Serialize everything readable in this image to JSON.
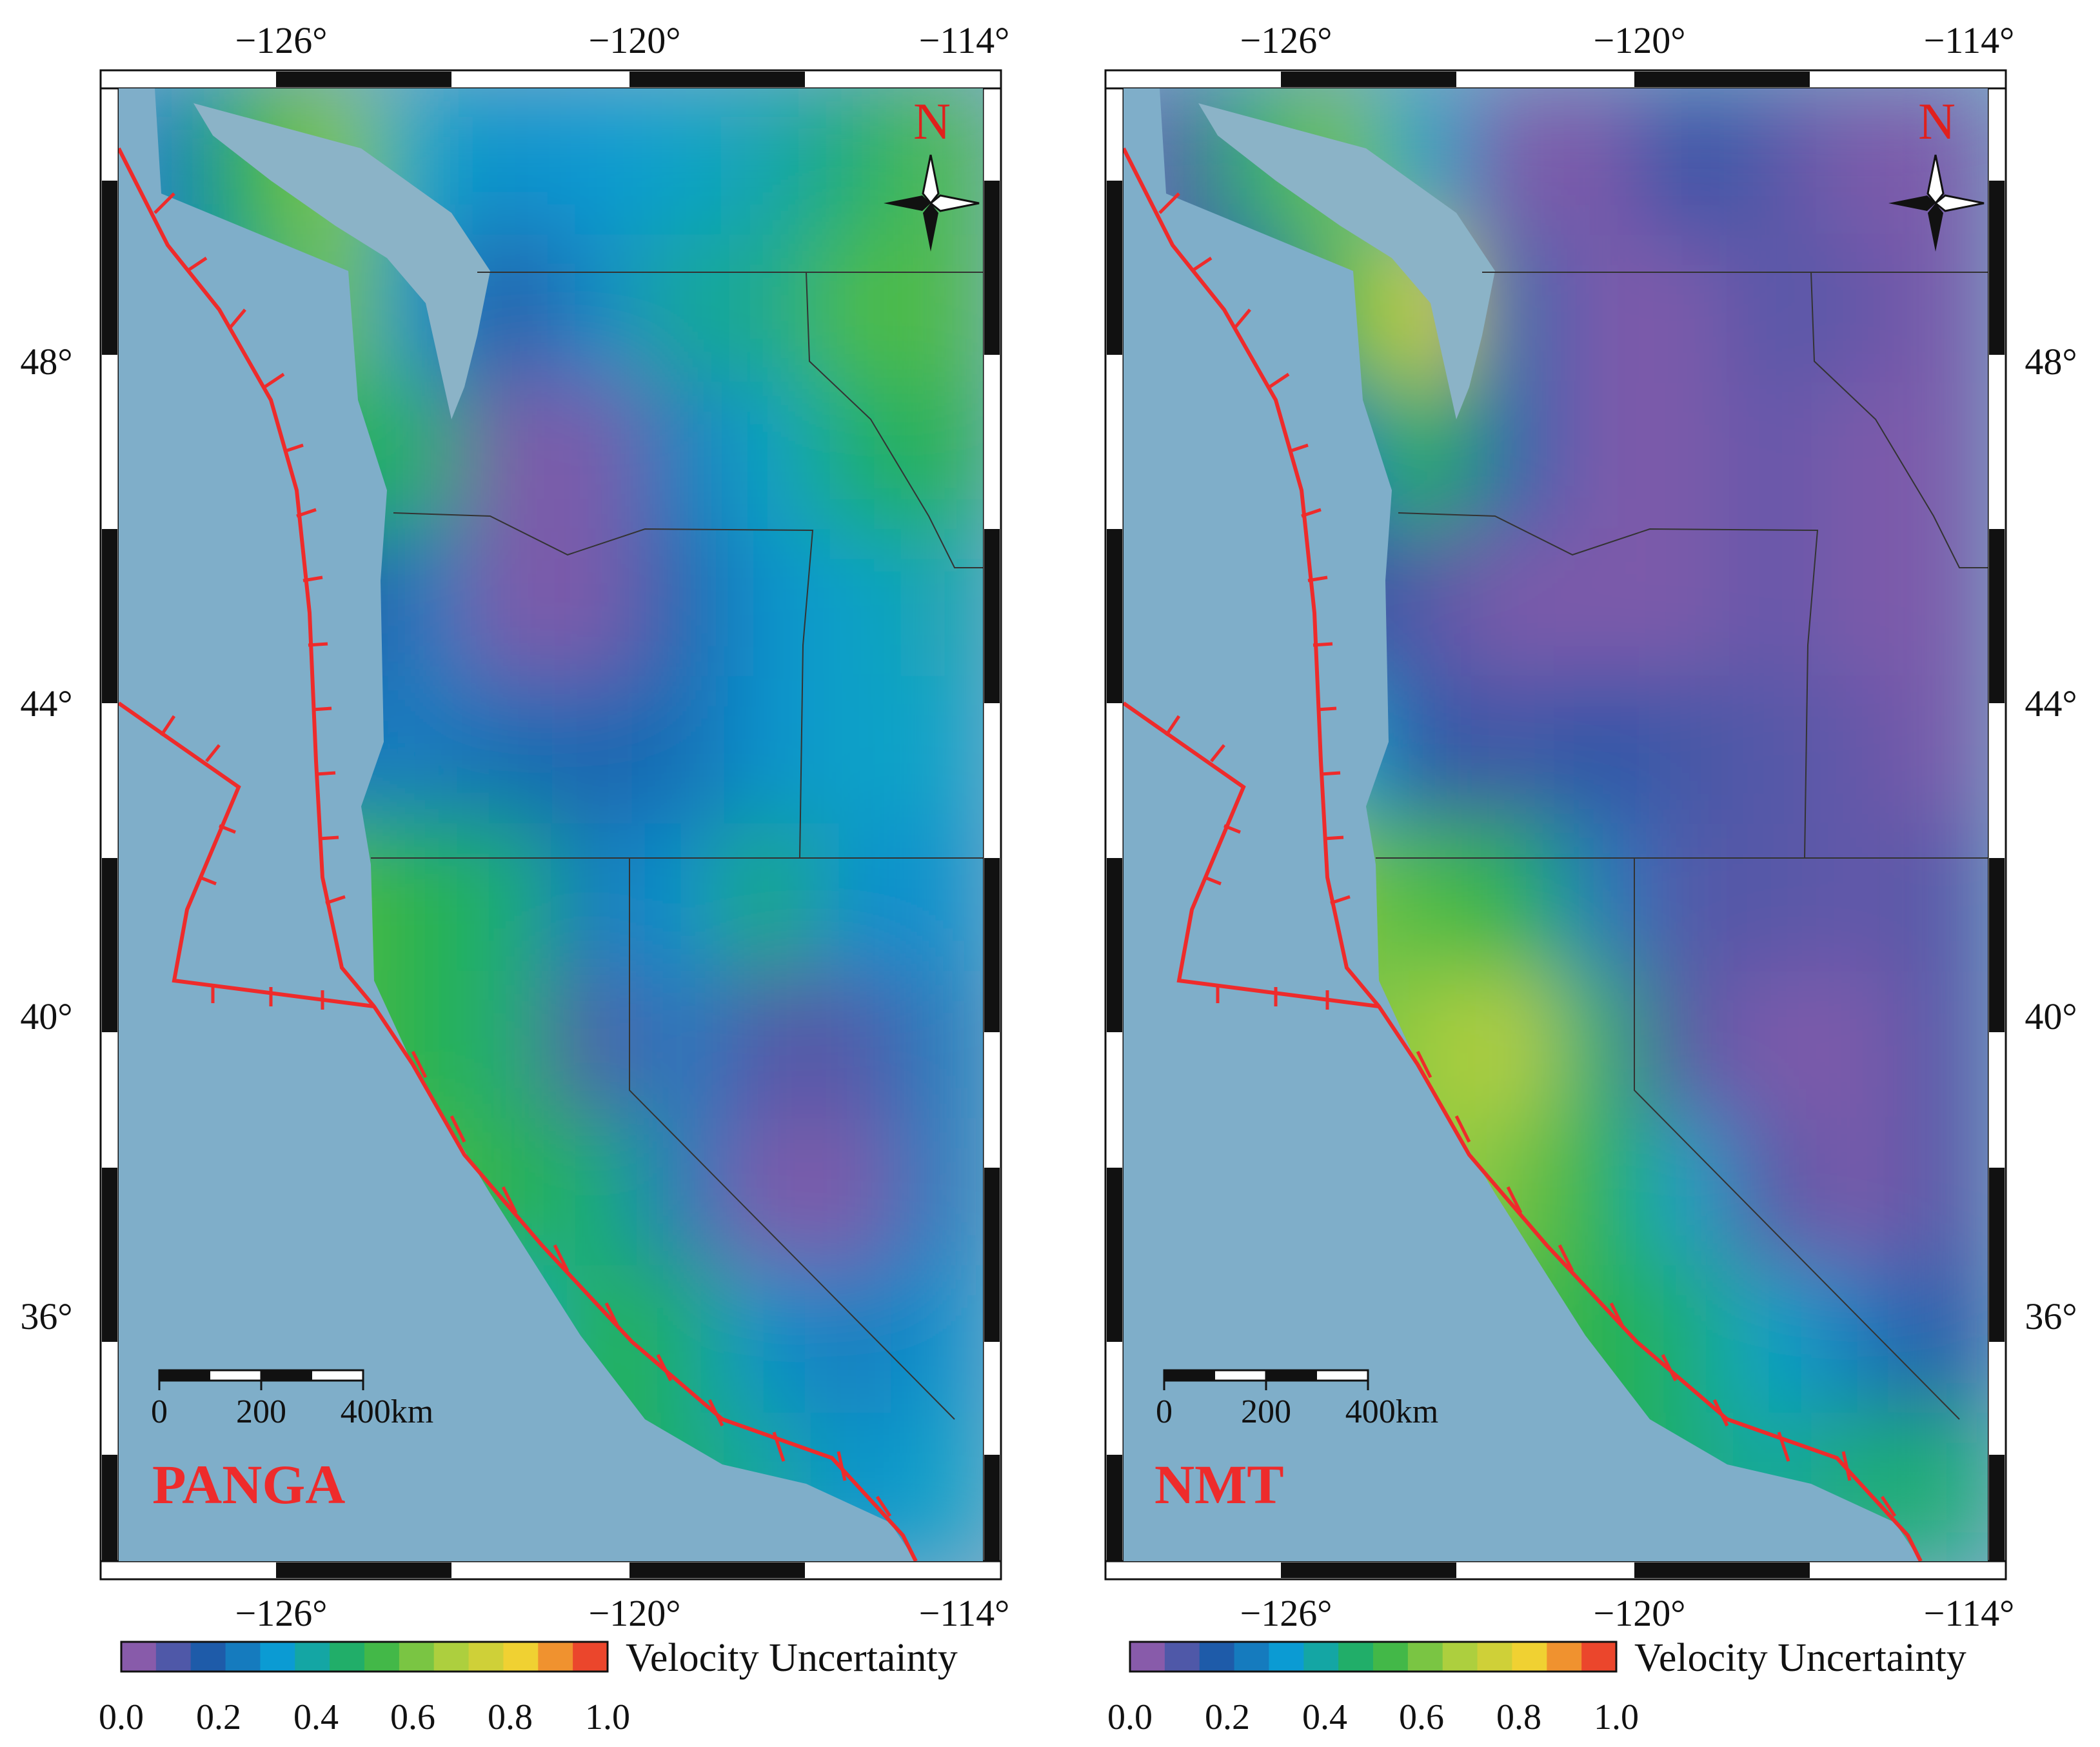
{
  "colors": {
    "ocean": "#7faec9",
    "water_inlets": "#8bb3c7",
    "plate_boundary": "#ee2b2b",
    "map_label": "#ee2b2b",
    "colormap": [
      "#a45cab",
      "#1f56a6",
      "#0aa0d6",
      "#27b24b",
      "#a8cf3f",
      "#f5d131",
      "#e8202a"
    ]
  },
  "panels": [
    {
      "label": "PANGA",
      "lon_ticks": [
        "−126°",
        "−120°",
        "−114°"
      ],
      "lat_ticks": [
        "48°",
        "44°",
        "40°",
        "36°"
      ],
      "north_label": "N",
      "scale_labels": [
        "0",
        "200",
        "400km"
      ],
      "legend": {
        "title": "Velocity Uncertainty",
        "ticks": [
          "0.0",
          "0.2",
          "0.4",
          "0.6",
          "0.8",
          "1.0"
        ],
        "range": [
          0.0,
          1.0
        ]
      },
      "field": [
        [
          0.25,
          0.5,
          0.62,
          0.35,
          0.3,
          0.32,
          0.35,
          0.38,
          0.45,
          0.55
        ],
        [
          0.25,
          0.42,
          0.6,
          0.3,
          0.15,
          0.28,
          0.4,
          0.42,
          0.55,
          0.55
        ],
        [
          0.25,
          0.2,
          0.5,
          0.45,
          0.05,
          0.05,
          0.25,
          0.35,
          0.45,
          0.5
        ],
        [
          0.25,
          0.45,
          0.15,
          0.25,
          0.05,
          0.05,
          0.2,
          0.3,
          0.35,
          0.38
        ],
        [
          0.25,
          0.2,
          0.25,
          0.25,
          0.22,
          0.2,
          0.22,
          0.3,
          0.35,
          0.35
        ],
        [
          0.25,
          0.6,
          0.55,
          0.5,
          0.45,
          0.25,
          0.3,
          0.45,
          0.3,
          0.3
        ],
        [
          0.25,
          0.45,
          0.55,
          0.5,
          0.45,
          0.1,
          0.25,
          0.1,
          0.1,
          0.25
        ],
        [
          0.25,
          0.25,
          0.5,
          0.55,
          0.5,
          0.45,
          0.25,
          0.05,
          0.05,
          0.25
        ],
        [
          0.25,
          0.25,
          0.3,
          0.45,
          0.35,
          0.5,
          0.45,
          0.3,
          0.25,
          0.3
        ],
        [
          0.25,
          0.25,
          0.25,
          0.3,
          0.45,
          0.5,
          0.45,
          0.4,
          0.3,
          0.35
        ]
      ]
    },
    {
      "label": "NMT",
      "lon_ticks": [
        "−126°",
        "−120°",
        "−114°"
      ],
      "lat_ticks": [
        "48°",
        "44°",
        "40°",
        "36°"
      ],
      "north_label": "N",
      "scale_labels": [
        "0",
        "200",
        "400km"
      ],
      "legend": {
        "title": "Velocity Uncertainty",
        "ticks": [
          "0.0",
          "0.2",
          "0.4",
          "0.6",
          "0.8",
          "1.0"
        ],
        "range": [
          0.0,
          1.0
        ]
      },
      "field": [
        [
          0.1,
          0.45,
          0.6,
          0.35,
          0.05,
          0.05,
          0.15,
          0.1,
          0.05,
          0.05
        ],
        [
          0.1,
          0.2,
          0.55,
          0.75,
          0.2,
          0.05,
          0.05,
          0.1,
          0.08,
          0.05
        ],
        [
          0.1,
          0.15,
          0.25,
          0.5,
          0.2,
          0.05,
          0.05,
          0.08,
          0.05,
          0.05
        ],
        [
          0.1,
          0.45,
          0.15,
          0.1,
          0.05,
          0.05,
          0.05,
          0.08,
          0.05,
          0.05
        ],
        [
          0.1,
          0.65,
          0.35,
          0.15,
          0.12,
          0.15,
          0.12,
          0.1,
          0.08,
          0.05
        ],
        [
          0.1,
          0.85,
          0.6,
          0.55,
          0.5,
          0.25,
          0.1,
          0.1,
          0.08,
          0.1
        ],
        [
          0.1,
          0.4,
          0.6,
          0.65,
          0.7,
          0.45,
          0.1,
          0.05,
          0.05,
          0.1
        ],
        [
          0.1,
          0.1,
          0.55,
          0.65,
          0.6,
          0.5,
          0.35,
          0.1,
          0.05,
          0.1
        ],
        [
          0.1,
          0.1,
          0.35,
          0.5,
          0.55,
          0.5,
          0.45,
          0.35,
          0.25,
          0.15
        ],
        [
          0.1,
          0.1,
          0.1,
          0.35,
          0.5,
          0.5,
          0.45,
          0.4,
          0.45,
          0.45
        ]
      ]
    }
  ]
}
